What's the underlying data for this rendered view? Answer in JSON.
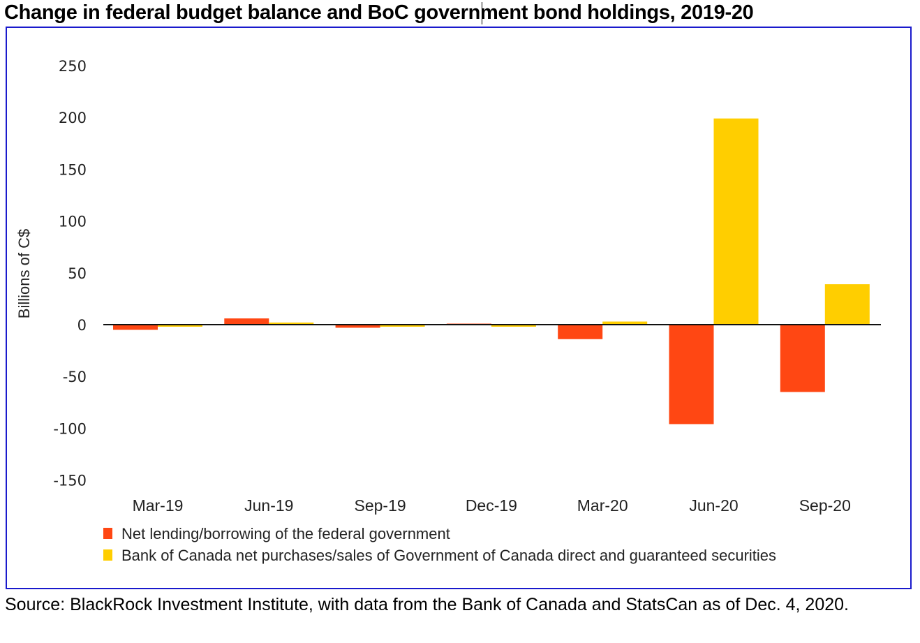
{
  "chart_data": {
    "type": "bar",
    "title": "Change in federal budget balance and BoC government bond holdings, 2019-20",
    "xlabel": "",
    "ylabel": "Billions of C$",
    "ylim": [
      -150,
      250
    ],
    "yticks": [
      250,
      200,
      150,
      100,
      50,
      0,
      -50,
      -100,
      -150
    ],
    "ytick_labels": [
      "250",
      "200",
      "150",
      "100",
      "50",
      "0",
      "-50",
      "-100",
      "-150"
    ],
    "categories": [
      "Mar-19",
      "Jun-19",
      "Sep-19",
      "Dec-19",
      "Mar-20",
      "Jun-20",
      "Sep-20"
    ],
    "grid": false,
    "legend_position": "bottom-left",
    "series": [
      {
        "name": "Net lending/borrowing of the federal government",
        "color": "#ff4713",
        "values": [
          -5,
          6,
          -3,
          1,
          -14,
          -96,
          -65
        ]
      },
      {
        "name": "Bank of Canada net purchases/sales of Government of Canada direct and guaranteed securities",
        "color": "#ffce00",
        "values": [
          -2,
          2,
          -2,
          -2,
          3,
          199,
          39
        ]
      }
    ]
  },
  "source_note": "Source: BlackRock Investment Institute, with data from the Bank of Canada and StatsCan as of Dec. 4, 2020.",
  "colors": {
    "frame_border": "#1a1acc",
    "axis_line": "#111111"
  }
}
